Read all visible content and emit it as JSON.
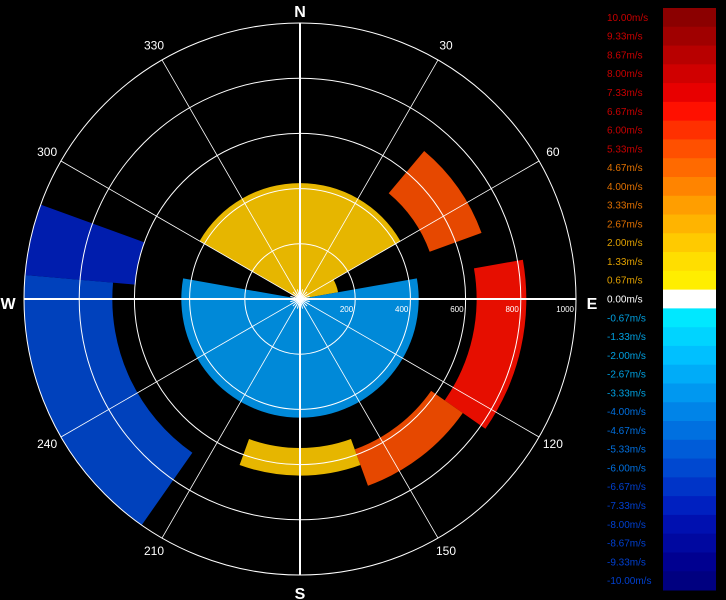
{
  "chart_data": {
    "type": "polar-heatmap",
    "title": "",
    "cardinal_labels": [
      "N",
      "E",
      "S",
      "W"
    ],
    "azimuth_labels": [
      "30",
      "60",
      "120",
      "150",
      "210",
      "240",
      "300",
      "330"
    ],
    "azimuth_angles": [
      30,
      60,
      120,
      150,
      210,
      240,
      300,
      330
    ],
    "range_labels": [
      "200",
      "400",
      "600",
      "800",
      "1000"
    ],
    "range_values": [
      200,
      400,
      600,
      800,
      1000
    ],
    "range_max": 1000,
    "colorbar": {
      "labels": [
        "10.00m/s",
        "9.33m/s",
        "8.67m/s",
        "8.00m/s",
        "7.33m/s",
        "6.67m/s",
        "6.00m/s",
        "5.33m/s",
        "4.67m/s",
        "4.00m/s",
        "3.33m/s",
        "2.67m/s",
        "2.00m/s",
        "1.33m/s",
        "0.67m/s",
        "0.00m/s",
        "-0.67m/s",
        "-1.33m/s",
        "-2.00m/s",
        "-2.67m/s",
        "-3.33m/s",
        "-4.00m/s",
        "-4.67m/s",
        "-5.33m/s",
        "-6.00m/s",
        "-6.67m/s",
        "-7.33m/s",
        "-8.00m/s",
        "-8.67m/s",
        "-9.33m/s",
        "-10.00m/s"
      ],
      "colors": [
        "#8b0000",
        "#a00000",
        "#b80000",
        "#d00000",
        "#e80000",
        "#ff1000",
        "#ff3000",
        "#ff5000",
        "#ff6a00",
        "#ff8400",
        "#ff9e00",
        "#ffb400",
        "#ffca00",
        "#ffde00",
        "#ffee00",
        "#ffffff",
        "#00e8ff",
        "#00d4ff",
        "#00c0ff",
        "#00acf8",
        "#0098f0",
        "#0084e8",
        "#0070e0",
        "#005cd8",
        "#0048d0",
        "#0034c8",
        "#0020c0",
        "#0010b0",
        "#0008a0",
        "#000090",
        "#000080"
      ],
      "label_colors": [
        "#c80000",
        "#c80000",
        "#c80000",
        "#c80000",
        "#c80000",
        "#c80000",
        "#c80000",
        "#c80000",
        "#e07000",
        "#e07000",
        "#e07000",
        "#e07000",
        "#e0a000",
        "#e0a000",
        "#e0a000",
        "#ffffff",
        "#00a0e0",
        "#00a0e0",
        "#00a0e0",
        "#00a0e0",
        "#00a0e0",
        "#0070e0",
        "#0070e0",
        "#0070e0",
        "#0070e0",
        "#0040d0",
        "#0040d0",
        "#0040d0",
        "#0040d0",
        "#0040d0",
        "#0040d0"
      ]
    },
    "sectors": [
      {
        "az_from": 300,
        "az_to": 420,
        "r_from": 0,
        "r_to": 420,
        "value": 1.8
      },
      {
        "az_from": 60,
        "az_to": 80,
        "r_from": 0,
        "r_to": 140,
        "value": 2.0
      },
      {
        "az_from": 80,
        "az_to": 280,
        "r_from": 0,
        "r_to": 430,
        "value": -3.2
      },
      {
        "az_from": 40,
        "az_to": 70,
        "r_from": 500,
        "r_to": 700,
        "value": 5.5
      },
      {
        "az_from": 80,
        "az_to": 125,
        "r_from": 640,
        "r_to": 820,
        "value": 6.5
      },
      {
        "az_from": 125,
        "az_to": 160,
        "r_from": 580,
        "r_to": 720,
        "value": 5.0
      },
      {
        "az_from": 160,
        "az_to": 200,
        "r_from": 540,
        "r_to": 640,
        "value": 2.2
      },
      {
        "az_from": 215,
        "az_to": 275,
        "r_from": 680,
        "r_to": 1000,
        "value": -6.0
      },
      {
        "az_from": 275,
        "az_to": 290,
        "r_from": 600,
        "r_to": 1000,
        "value": -7.5
      }
    ]
  }
}
